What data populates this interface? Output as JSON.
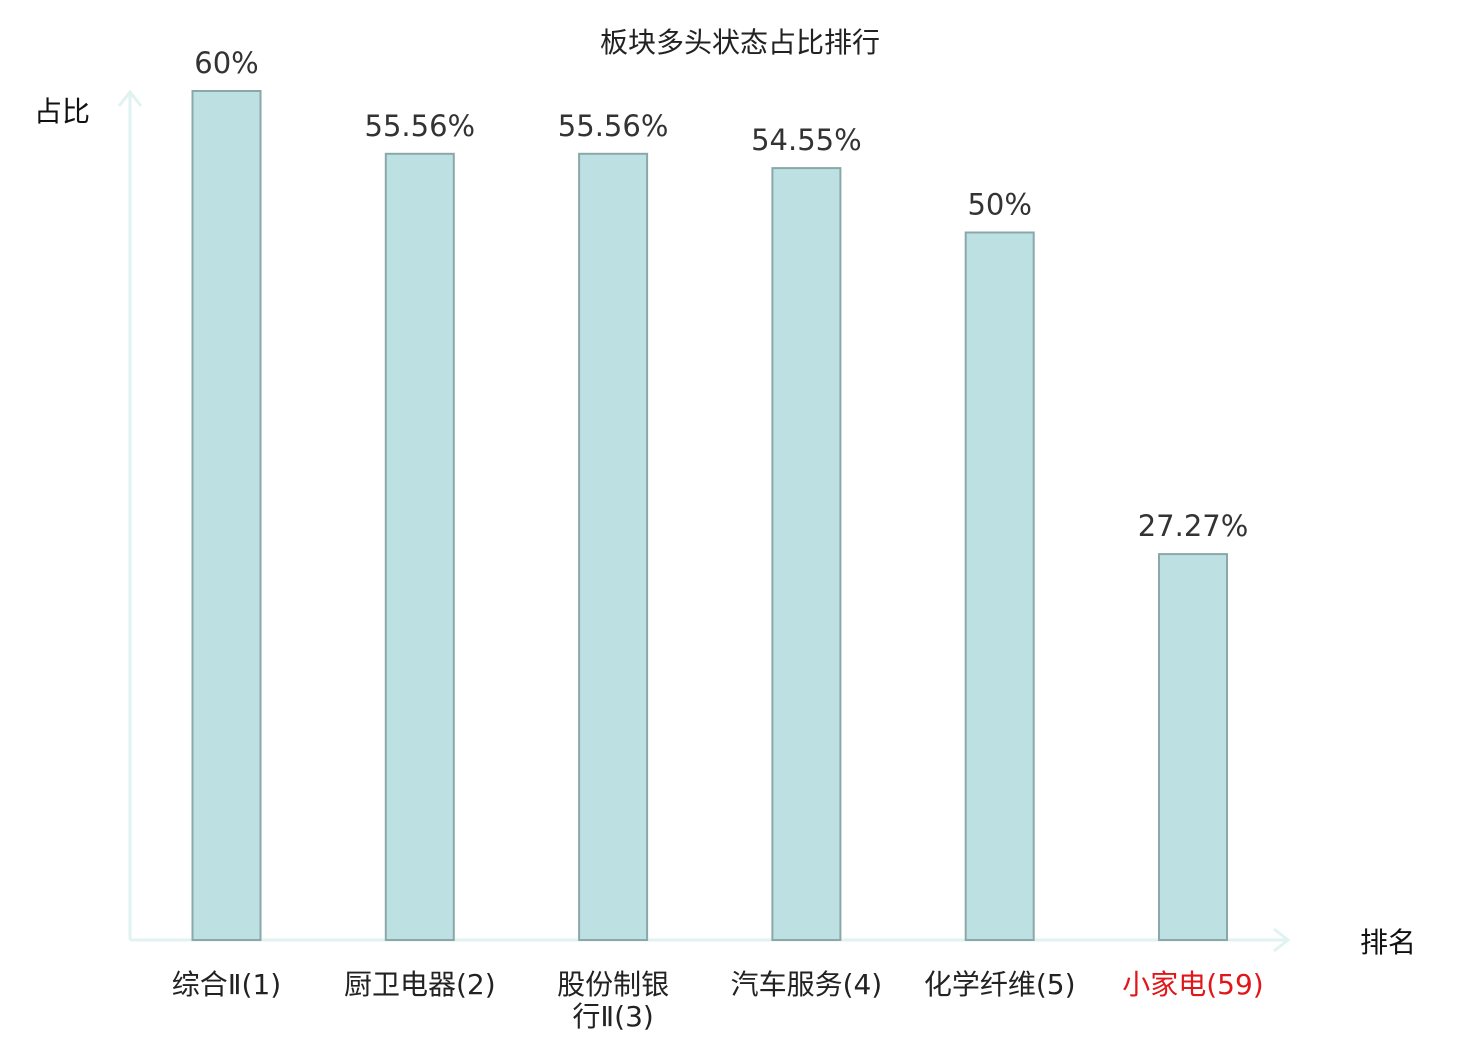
{
  "chart_data": {
    "type": "bar",
    "title": "板块多头状态占比排行",
    "ylabel": "占比",
    "xlabel": "排名",
    "ylim": [
      0,
      60
    ],
    "grid": false,
    "categories": [
      [
        "综合Ⅱ(1)"
      ],
      [
        "厨卫电器(2)"
      ],
      [
        "股份制银",
        "行Ⅱ(3)"
      ],
      [
        "汽车服务(4)"
      ],
      [
        "化学纤维(5)"
      ],
      [
        "小家电(59)"
      ]
    ],
    "values": [
      60,
      55.56,
      55.56,
      54.55,
      50,
      27.27
    ],
    "value_labels": [
      "60%",
      "55.56%",
      "55.56%",
      "54.55%",
      "50%",
      "27.27%"
    ],
    "highlight_index": 5,
    "colors": {
      "bar_fill": "#bde1e3",
      "bar_stroke": "#8aa8aa",
      "axis": "#e0f3f1",
      "highlight_label": "#e0161b"
    }
  }
}
